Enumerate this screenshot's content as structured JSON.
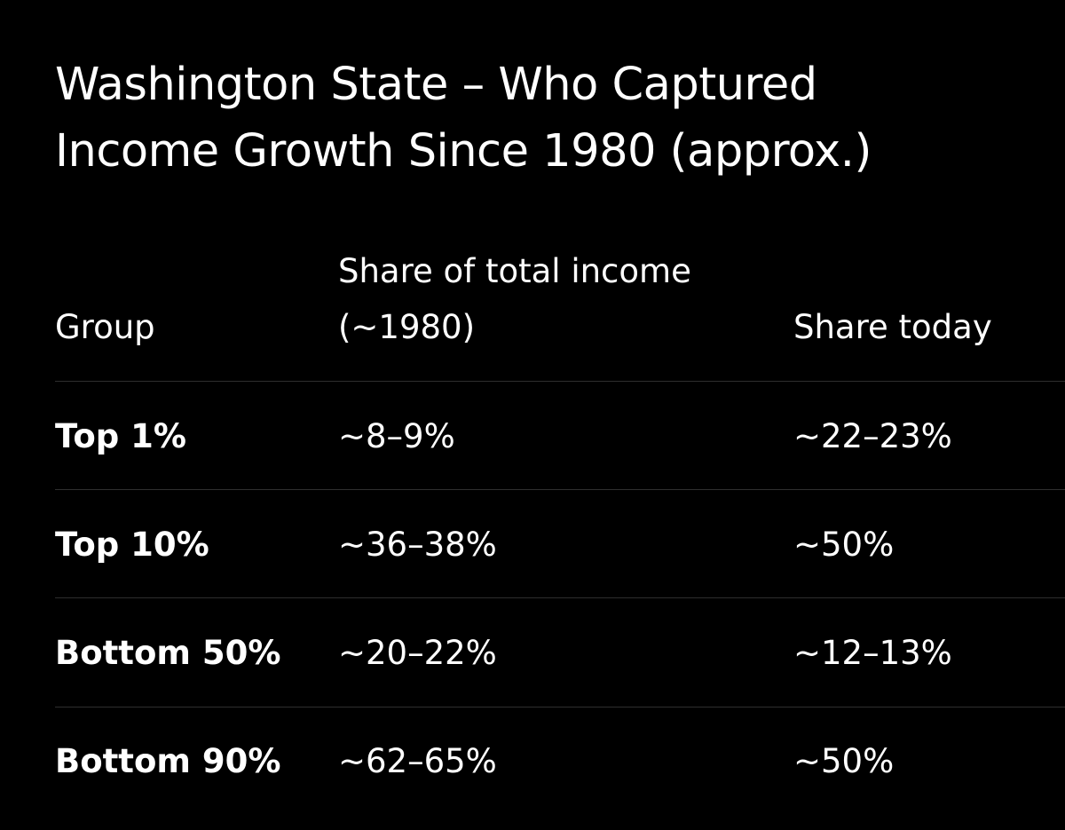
{
  "title": {
    "line1": "Washington State – Who Captured",
    "line2": "Income Growth Since 1980 (approx.)"
  },
  "table": {
    "headers": {
      "group": "Group",
      "share_1980_line1": "Share of total income",
      "share_1980_line2": "(~1980)",
      "share_today": "Share today"
    },
    "rows": [
      {
        "group": "Top 1%",
        "share_1980": "~8–9%",
        "share_today": "~22–23%"
      },
      {
        "group": "Top 10%",
        "share_1980": "~36–38%",
        "share_today": "~50%"
      },
      {
        "group": "Bottom 50%",
        "share_1980": "~20–22%",
        "share_today": "~12–13%"
      },
      {
        "group": "Bottom 90%",
        "share_1980": "~62–65%",
        "share_today": "~50%"
      }
    ]
  },
  "colors": {
    "background": "#000000",
    "text": "#ffffff",
    "divider": "#2e2e2e"
  }
}
